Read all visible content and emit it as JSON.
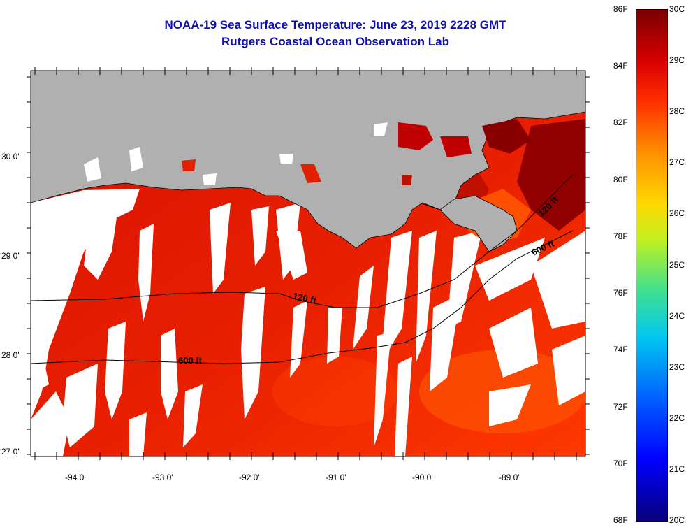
{
  "title": {
    "line1": "NOAA-19 Sea Surface Temperature:  June 23, 2019 2228 GMT",
    "line2": "Rutgers Coastal Ocean Observation Lab"
  },
  "axes": {
    "x_labels": [
      "-94 0'",
      "-93 0'",
      "-92 0'",
      "-91 0'",
      "-90 0'",
      "-89 0'"
    ],
    "y_labels": [
      "30 0'",
      "29 0'",
      "28 0'",
      "27 0'"
    ]
  },
  "isobaths": [
    "120 ft",
    "600 ft",
    "120 ft",
    "600 ft"
  ],
  "colorbar": {
    "f_labels": [
      "86F",
      "84F",
      "82F",
      "80F",
      "78F",
      "76F",
      "74F",
      "72F",
      "70F",
      "68F"
    ],
    "c_labels": [
      "30C",
      "29C",
      "28C",
      "27C",
      "26C",
      "25C",
      "24C",
      "23C",
      "22C",
      "21C",
      "20C"
    ]
  },
  "colors": {
    "land": "#b0b0b0",
    "title": "#1010b0",
    "sea_warm": "#e01800",
    "sea_hot": "#9a0000",
    "cloud": "#ffffff"
  }
}
